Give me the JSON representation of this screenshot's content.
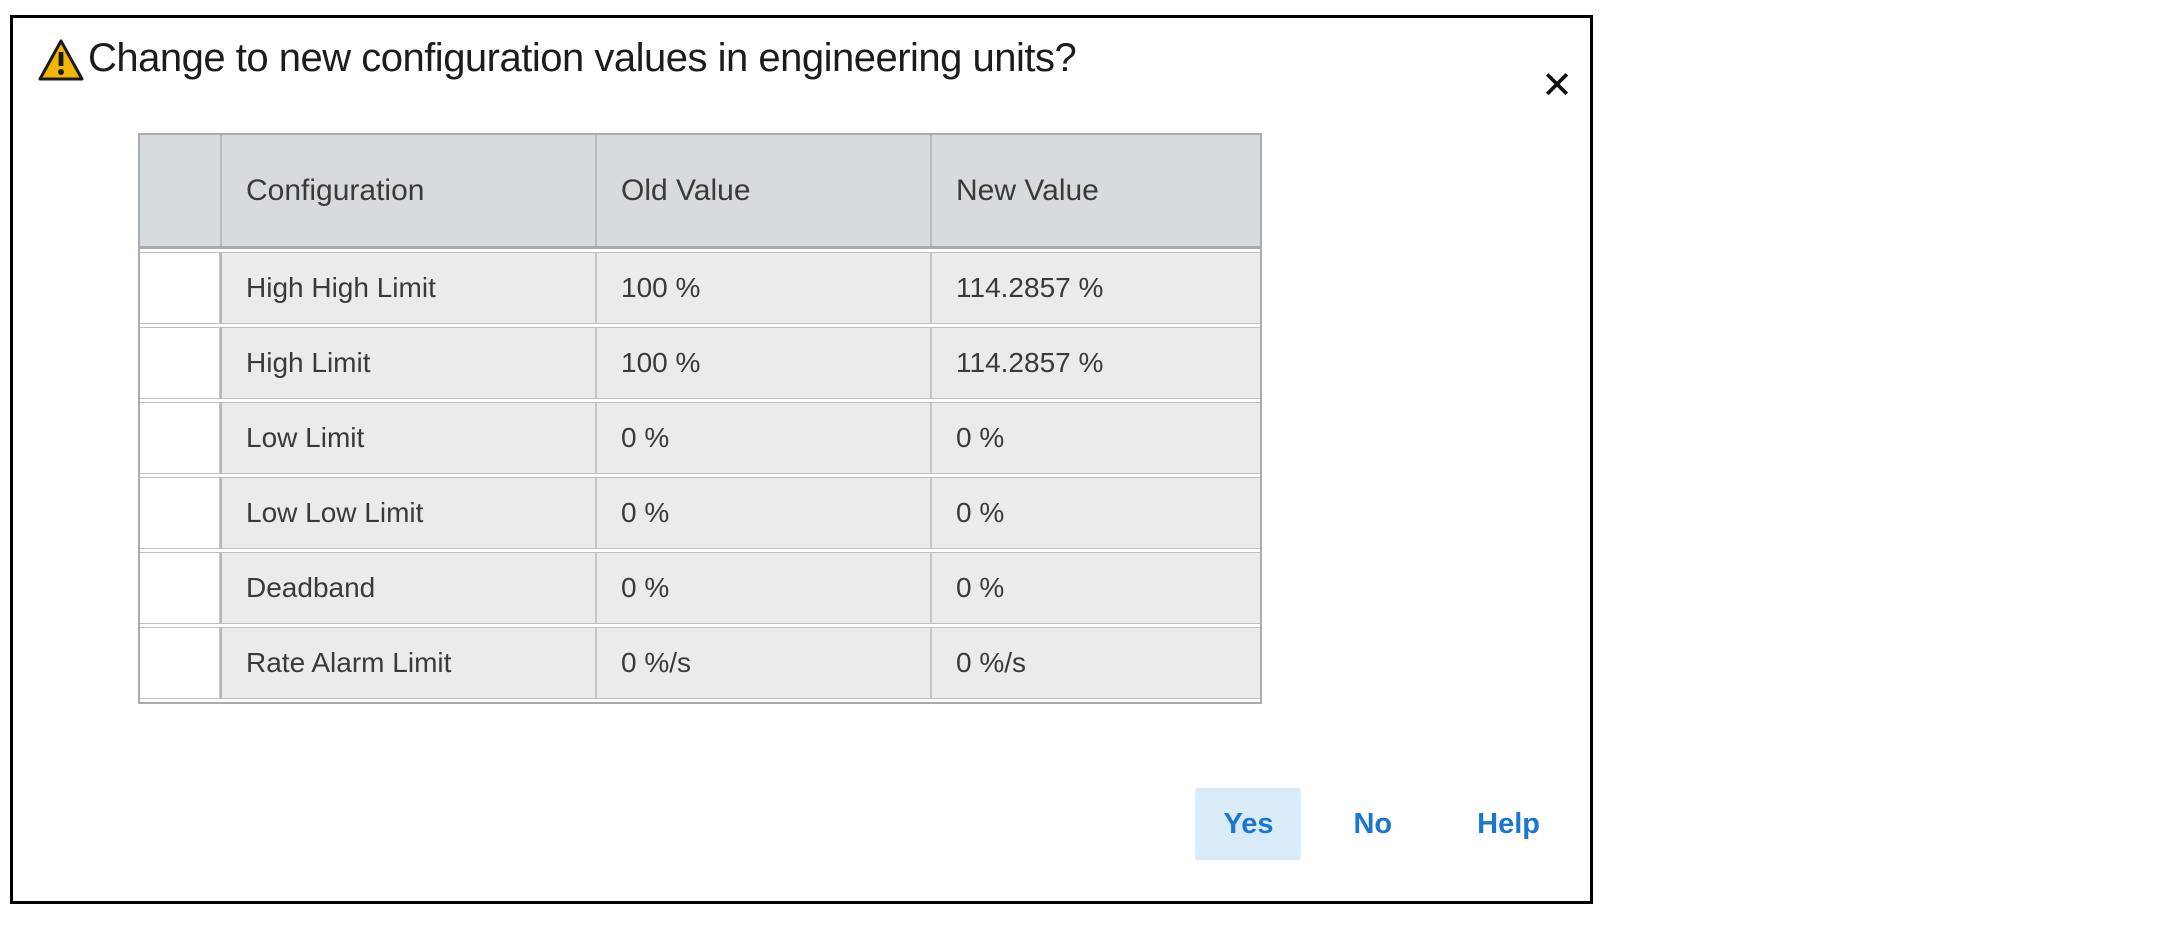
{
  "dialog": {
    "title": "Change to new configuration values in engineering units?",
    "close_glyph": "✕"
  },
  "table": {
    "headers": {
      "configuration": "Configuration",
      "old_value": "Old Value",
      "new_value": "New Value"
    },
    "rows": [
      {
        "configuration": "High High Limit",
        "old_value": "100 %",
        "new_value": "114.2857 %"
      },
      {
        "configuration": "High Limit",
        "old_value": "100 %",
        "new_value": "114.2857 %"
      },
      {
        "configuration": "Low Limit",
        "old_value": "0 %",
        "new_value": "0 %"
      },
      {
        "configuration": "Low Low Limit",
        "old_value": "0 %",
        "new_value": "0 %"
      },
      {
        "configuration": "Deadband",
        "old_value": "0 %",
        "new_value": "0 %"
      },
      {
        "configuration": "Rate Alarm Limit",
        "old_value": "0 %/s",
        "new_value": "0 %/s"
      }
    ]
  },
  "buttons": {
    "yes": "Yes",
    "no": "No",
    "help": "Help"
  },
  "colors": {
    "accent_blue": "#1b76cf",
    "yes_button_bg": "#d9eaf8",
    "warning_yellow": "#f2b705",
    "title_text": "#1c1c1c"
  }
}
